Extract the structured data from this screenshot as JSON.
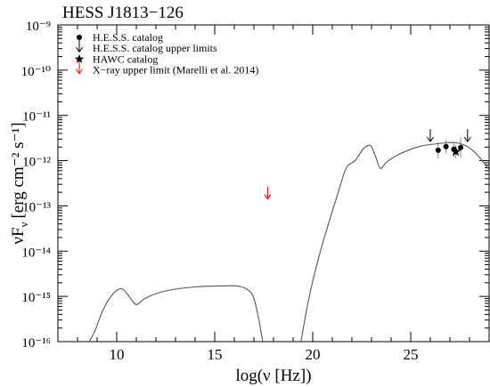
{
  "chart_data": {
    "type": "line",
    "title": "HESS J1813−126",
    "xlabel": "log(ν [Hz])",
    "ylabel_main": "νF",
    "ylabel_sub": "ν",
    "ylabel_unit": "[erg cm⁻² s⁻¹]",
    "xlim": [
      7,
      29
    ],
    "ylim": [
      -16,
      -9
    ],
    "y_scale": "log",
    "x_ticks": [
      10,
      15,
      20,
      25
    ],
    "x_tick_labels": [
      "10",
      "15",
      "20",
      "25"
    ],
    "y_ticks": [
      -16,
      -15,
      -14,
      -13,
      -12,
      -11,
      -10,
      -9
    ],
    "y_tick_labels": [
      "10⁻¹⁶",
      "10⁻¹⁵",
      "10⁻¹⁴",
      "10⁻¹³",
      "10⁻¹²",
      "10⁻¹¹",
      "10⁻¹⁰",
      "10⁻⁹"
    ],
    "grid": false,
    "legend_position": "top-left",
    "legend": [
      {
        "symbol": "circle",
        "color": "#000000",
        "label": "H.E.S.S. catalog"
      },
      {
        "symbol": "down-arrow",
        "color": "#000000",
        "label": "H.E.S.S. catalog upper limits"
      },
      {
        "symbol": "star",
        "color": "#000000",
        "label": "HAWC catalog"
      },
      {
        "symbol": "down-arrow",
        "color": "#ff0000",
        "label": "X−ray upper limit (Marelli et al. 2014)"
      }
    ],
    "model_curve": {
      "color": "#555555",
      "segments": [
        {
          "x": [
            8.6,
            8.9,
            9.3,
            9.8,
            10.25,
            10.6,
            11.0,
            11.5,
            12.5,
            14.0,
            15.5,
            16.3,
            16.9,
            17.2,
            17.45
          ],
          "y": [
            -16.0,
            -15.75,
            -15.3,
            -14.95,
            -14.83,
            -14.98,
            -15.18,
            -15.03,
            -14.88,
            -14.79,
            -14.77,
            -14.78,
            -14.95,
            -15.4,
            -16.0
          ]
        },
        {
          "x": [
            19.4,
            19.8,
            20.3,
            20.8,
            21.3,
            21.7,
            22.0,
            22.2,
            22.6,
            22.95,
            23.2,
            23.45,
            23.8,
            24.5,
            25.5,
            26.5,
            27.0,
            27.5,
            28.0,
            28.5,
            29.0
          ],
          "y": [
            -16.0,
            -15.05,
            -14.15,
            -13.4,
            -12.7,
            -12.17,
            -12.05,
            -11.98,
            -11.73,
            -11.67,
            -11.9,
            -12.17,
            -12.02,
            -11.84,
            -11.68,
            -11.62,
            -11.6,
            -11.62,
            -11.72,
            -11.92,
            -12.2
          ]
        }
      ]
    },
    "series": [
      {
        "name": "H.E.S.S. catalog",
        "marker": "circle",
        "color": "#000000",
        "points": [
          {
            "x": 26.4,
            "y": -11.77,
            "yerr": 0.18
          },
          {
            "x": 26.8,
            "y": -11.69,
            "yerr": 0.16
          },
          {
            "x": 27.2,
            "y": -11.75,
            "yerr": 0.17
          },
          {
            "x": 27.55,
            "y": -11.71,
            "yerr": 0.22
          }
        ]
      },
      {
        "name": "HAWC catalog",
        "marker": "star",
        "color": "#000000",
        "points": [
          {
            "x": 27.3,
            "y": -11.8,
            "yerr": 0.14
          }
        ]
      },
      {
        "name": "H.E.S.S. catalog upper limits",
        "marker": "down-arrow",
        "color": "#000000",
        "points": [
          {
            "x": 26.0,
            "y": -11.48
          },
          {
            "x": 27.9,
            "y": -11.48
          }
        ]
      },
      {
        "name": "X−ray upper limit (Marelli et al. 2014)",
        "marker": "down-arrow",
        "color": "#ff0000",
        "points": [
          {
            "x": 17.7,
            "y": -12.75
          }
        ]
      }
    ]
  }
}
